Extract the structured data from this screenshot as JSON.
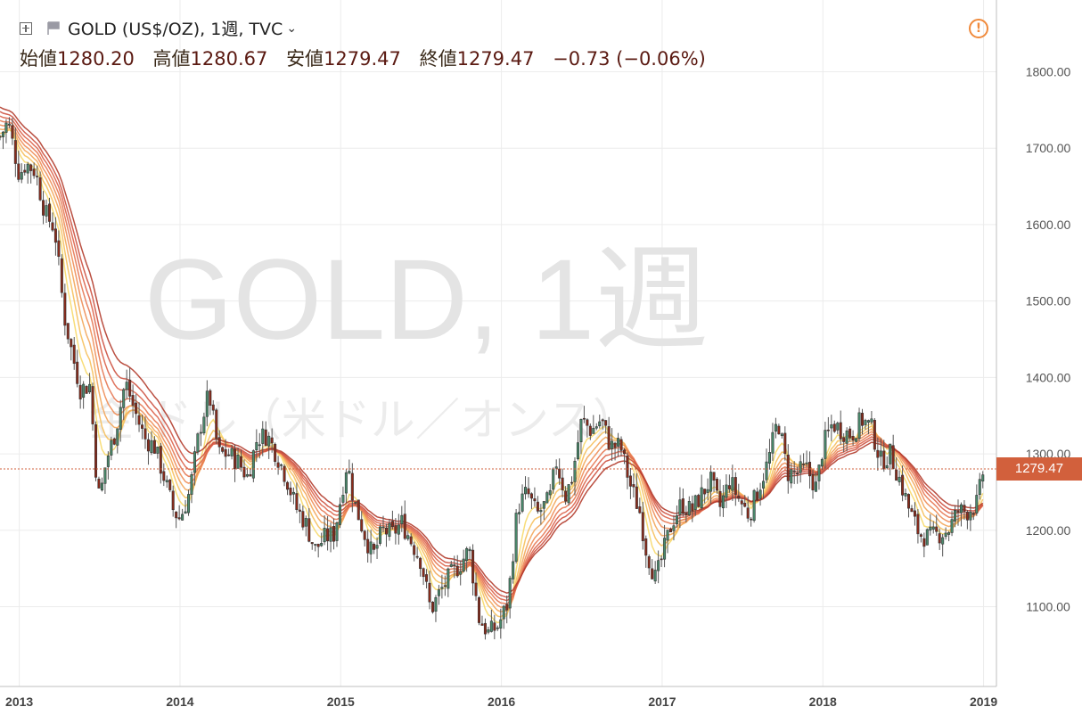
{
  "header": {
    "title": "GOLD (US$/OZ), 1週, TVC",
    "ohlc": [
      {
        "label": "始値",
        "value": "1280.20"
      },
      {
        "label": "高値",
        "value": "1280.67"
      },
      {
        "label": "安値",
        "value": "1279.47"
      },
      {
        "label": "終値",
        "value": "1279.47"
      }
    ],
    "change": "−0.73 (−0.06%)"
  },
  "watermark": {
    "line1": "GOLD, 1週",
    "line2": "金 ドル（米ドル／オンス）"
  },
  "last_price": "1279.47",
  "colors": {
    "up": "#4a8a6c",
    "down": "#8b2b1b",
    "price_tag": "#d2603c",
    "alert": "#f08a3c"
  },
  "chart_data": {
    "type": "candlestick",
    "title": "GOLD (US$/OZ), 1週, TVC",
    "x_ticks": [
      "2013",
      "2014",
      "2015",
      "2016",
      "2017",
      "2018",
      "2019"
    ],
    "y_ticks": [
      "1100.00",
      "1200.00",
      "1300.00",
      "1400.00",
      "1500.00",
      "1600.00",
      "1700.00",
      "1800.00"
    ],
    "ylim": [
      1020,
      1860
    ],
    "xlim": [
      2012.88,
      2019.08
    ],
    "grid": true,
    "close_path": [
      [
        2012.88,
        1715
      ],
      [
        2012.93,
        1735
      ],
      [
        2013.0,
        1665
      ],
      [
        2013.04,
        1680
      ],
      [
        2013.1,
        1670
      ],
      [
        2013.16,
        1615
      ],
      [
        2013.22,
        1595
      ],
      [
        2013.28,
        1480
      ],
      [
        2013.33,
        1430
      ],
      [
        2013.38,
        1385
      ],
      [
        2013.44,
        1390
      ],
      [
        2013.48,
        1270
      ],
      [
        2013.5,
        1240
      ],
      [
        2013.54,
        1290
      ],
      [
        2013.6,
        1330
      ],
      [
        2013.66,
        1395
      ],
      [
        2013.72,
        1355
      ],
      [
        2013.78,
        1320
      ],
      [
        2013.84,
        1310
      ],
      [
        2013.9,
        1270
      ],
      [
        2013.96,
        1225
      ],
      [
        2014.0,
        1215
      ],
      [
        2014.06,
        1250
      ],
      [
        2014.12,
        1330
      ],
      [
        2014.18,
        1380
      ],
      [
        2014.24,
        1300
      ],
      [
        2014.3,
        1300
      ],
      [
        2014.36,
        1290
      ],
      [
        2014.42,
        1270
      ],
      [
        2014.48,
        1320
      ],
      [
        2014.54,
        1325
      ],
      [
        2014.6,
        1300
      ],
      [
        2014.66,
        1270
      ],
      [
        2014.72,
        1230
      ],
      [
        2014.78,
        1210
      ],
      [
        2014.84,
        1175
      ],
      [
        2014.9,
        1190
      ],
      [
        2014.96,
        1195
      ],
      [
        2015.04,
        1290
      ],
      [
        2015.08,
        1240
      ],
      [
        2015.14,
        1200
      ],
      [
        2015.2,
        1165
      ],
      [
        2015.26,
        1200
      ],
      [
        2015.32,
        1195
      ],
      [
        2015.38,
        1210
      ],
      [
        2015.44,
        1185
      ],
      [
        2015.5,
        1160
      ],
      [
        2015.56,
        1095
      ],
      [
        2015.62,
        1120
      ],
      [
        2015.68,
        1140
      ],
      [
        2015.74,
        1155
      ],
      [
        2015.8,
        1175
      ],
      [
        2015.86,
        1085
      ],
      [
        2015.92,
        1065
      ],
      [
        2015.98,
        1075
      ],
      [
        2016.04,
        1105
      ],
      [
        2016.1,
        1230
      ],
      [
        2016.16,
        1250
      ],
      [
        2016.22,
        1220
      ],
      [
        2016.3,
        1240
      ],
      [
        2016.34,
        1290
      ],
      [
        2016.4,
        1245
      ],
      [
        2016.44,
        1270
      ],
      [
        2016.5,
        1345
      ],
      [
        2016.56,
        1330
      ],
      [
        2016.62,
        1345
      ],
      [
        2016.68,
        1310
      ],
      [
        2016.74,
        1310
      ],
      [
        2016.8,
        1260
      ],
      [
        2016.86,
        1225
      ],
      [
        2016.9,
        1175
      ],
      [
        2016.96,
        1135
      ],
      [
        2017.0,
        1165
      ],
      [
        2017.06,
        1210
      ],
      [
        2017.12,
        1235
      ],
      [
        2017.18,
        1225
      ],
      [
        2017.24,
        1245
      ],
      [
        2017.3,
        1265
      ],
      [
        2017.36,
        1230
      ],
      [
        2017.42,
        1265
      ],
      [
        2017.48,
        1240
      ],
      [
        2017.54,
        1220
      ],
      [
        2017.6,
        1255
      ],
      [
        2017.66,
        1290
      ],
      [
        2017.72,
        1345
      ],
      [
        2017.78,
        1275
      ],
      [
        2017.84,
        1275
      ],
      [
        2017.9,
        1280
      ],
      [
        2017.96,
        1255
      ],
      [
        2018.0,
        1310
      ],
      [
        2018.06,
        1340
      ],
      [
        2018.12,
        1330
      ],
      [
        2018.18,
        1325
      ],
      [
        2018.24,
        1345
      ],
      [
        2018.3,
        1335
      ],
      [
        2018.36,
        1290
      ],
      [
        2018.42,
        1300
      ],
      [
        2018.48,
        1265
      ],
      [
        2018.54,
        1225
      ],
      [
        2018.6,
        1195
      ],
      [
        2018.66,
        1190
      ],
      [
        2018.72,
        1195
      ],
      [
        2018.78,
        1200
      ],
      [
        2018.84,
        1225
      ],
      [
        2018.9,
        1225
      ],
      [
        2018.96,
        1235
      ],
      [
        2019.0,
        1280
      ]
    ]
  }
}
